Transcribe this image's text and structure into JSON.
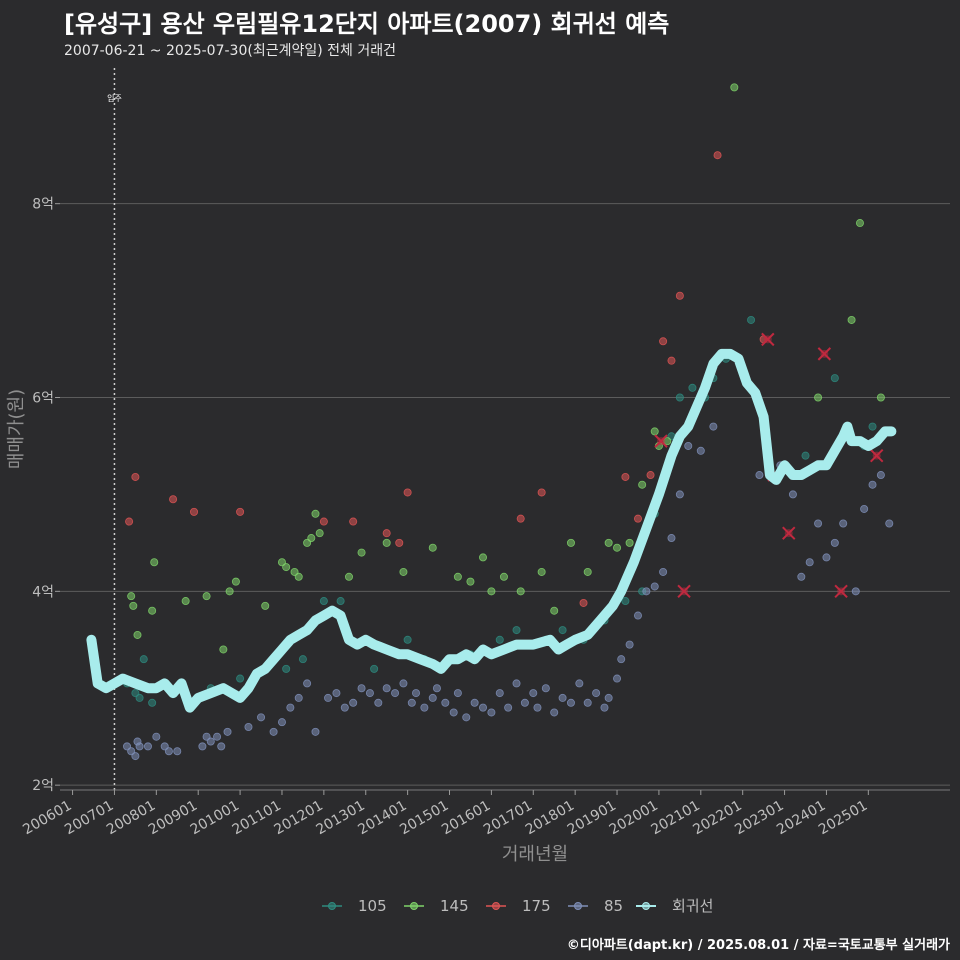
{
  "header": {
    "title": "[유성구] 용산 우림필유12단지 아파트(2007) 회귀선 예측",
    "subtitle": "2007-06-21 ~ 2025-07-30(최근계약일) 전체 거래건"
  },
  "footer": {
    "credit": "©디아파트(dapt.kr) / 2025.08.01 / 자료=국토교통부 실거래가"
  },
  "colors": {
    "background": "#2b2b2d",
    "grid": "#5c5c5c",
    "s105": "#2e8b7f",
    "s145": "#7fd46a",
    "s175": "#e05555",
    "s85": "#7f8fb8",
    "regression": "#a8ecec",
    "cancel_mark": "#c0293f"
  },
  "chart_data": {
    "type": "scatter",
    "title": "[유성구] 용산 우림필유12단지 아파트(2007) 회귀선 예측",
    "xlabel": "거래년월",
    "ylabel": "매매가(원)",
    "xlim": [
      2005.7,
      2026.95
    ],
    "ylim": [
      1.95,
      9.4
    ],
    "y_ticks": [
      {
        "value": 2,
        "label": "2억"
      },
      {
        "value": 4,
        "label": "4억"
      },
      {
        "value": 6,
        "label": "6억"
      },
      {
        "value": 8,
        "label": "8억"
      }
    ],
    "x_ticks": [
      {
        "value": 2006.0,
        "label": "200601"
      },
      {
        "value": 2007.0,
        "label": "200701"
      },
      {
        "value": 2008.0,
        "label": "200801"
      },
      {
        "value": 2009.0,
        "label": "200901"
      },
      {
        "value": 2010.0,
        "label": "201001"
      },
      {
        "value": 2011.0,
        "label": "201101"
      },
      {
        "value": 2012.0,
        "label": "201201"
      },
      {
        "value": 2013.0,
        "label": "201301"
      },
      {
        "value": 2014.0,
        "label": "201401"
      },
      {
        "value": 2015.0,
        "label": "201501"
      },
      {
        "value": 2016.0,
        "label": "201601"
      },
      {
        "value": 2017.0,
        "label": "201701"
      },
      {
        "value": 2018.0,
        "label": "201801"
      },
      {
        "value": 2019.0,
        "label": "201901"
      },
      {
        "value": 2020.0,
        "label": "202001"
      },
      {
        "value": 2021.0,
        "label": "202101"
      },
      {
        "value": 2022.0,
        "label": "202201"
      },
      {
        "value": 2023.0,
        "label": "202301"
      },
      {
        "value": 2024.0,
        "label": "202401"
      },
      {
        "value": 2025.0,
        "label": "202501"
      }
    ],
    "grid": true,
    "legend_position": "bottom",
    "annotation": {
      "x": 2007.0,
      "label": "입주"
    },
    "series": [
      {
        "name": "105",
        "points": [
          [
            2007.3,
            3.05
          ],
          [
            2007.5,
            2.95
          ],
          [
            2007.6,
            2.9
          ],
          [
            2007.7,
            3.3
          ],
          [
            2007.9,
            2.85
          ],
          [
            2008.6,
            3.05
          ],
          [
            2009.3,
            3.0
          ],
          [
            2010.0,
            3.1
          ],
          [
            2011.1,
            3.2
          ],
          [
            2011.5,
            3.3
          ],
          [
            2012.0,
            3.9
          ],
          [
            2012.4,
            3.9
          ],
          [
            2013.2,
            3.2
          ],
          [
            2014.0,
            3.5
          ],
          [
            2014.4,
            3.3
          ],
          [
            2015.0,
            3.3
          ],
          [
            2015.5,
            3.35
          ],
          [
            2016.2,
            3.5
          ],
          [
            2016.6,
            3.6
          ],
          [
            2017.3,
            3.5
          ],
          [
            2017.7,
            3.6
          ],
          [
            2018.2,
            3.5
          ],
          [
            2018.7,
            3.7
          ],
          [
            2019.2,
            3.9
          ],
          [
            2019.6,
            4.0
          ],
          [
            2019.9,
            4.8
          ],
          [
            2020.3,
            5.6
          ],
          [
            2020.5,
            6.0
          ],
          [
            2020.8,
            6.1
          ],
          [
            2021.1,
            6.0
          ],
          [
            2021.3,
            6.2
          ],
          [
            2021.6,
            6.4
          ],
          [
            2022.2,
            6.8
          ],
          [
            2023.5,
            5.4
          ],
          [
            2024.2,
            6.2
          ],
          [
            2024.9,
            5.5
          ],
          [
            2025.1,
            5.7
          ]
        ]
      },
      {
        "name": "145",
        "points": [
          [
            2007.4,
            3.95
          ],
          [
            2007.45,
            3.85
          ],
          [
            2007.55,
            3.55
          ],
          [
            2007.9,
            3.8
          ],
          [
            2007.95,
            4.3
          ],
          [
            2008.7,
            3.9
          ],
          [
            2009.2,
            3.95
          ],
          [
            2009.6,
            3.4
          ],
          [
            2009.75,
            4.0
          ],
          [
            2009.9,
            4.1
          ],
          [
            2010.6,
            3.85
          ],
          [
            2011.0,
            4.3
          ],
          [
            2011.1,
            4.25
          ],
          [
            2011.3,
            4.2
          ],
          [
            2011.4,
            4.15
          ],
          [
            2011.6,
            4.5
          ],
          [
            2011.7,
            4.55
          ],
          [
            2011.8,
            4.8
          ],
          [
            2011.9,
            4.6
          ],
          [
            2012.6,
            4.15
          ],
          [
            2012.9,
            4.4
          ],
          [
            2013.5,
            4.5
          ],
          [
            2013.9,
            4.2
          ],
          [
            2014.6,
            4.45
          ],
          [
            2015.2,
            4.15
          ],
          [
            2015.5,
            4.1
          ],
          [
            2015.8,
            4.35
          ],
          [
            2016.0,
            4.0
          ],
          [
            2016.3,
            4.15
          ],
          [
            2016.7,
            4.0
          ],
          [
            2017.2,
            4.2
          ],
          [
            2017.5,
            3.8
          ],
          [
            2017.9,
            4.5
          ],
          [
            2018.3,
            4.2
          ],
          [
            2018.8,
            4.5
          ],
          [
            2019.0,
            4.45
          ],
          [
            2019.3,
            4.5
          ],
          [
            2019.6,
            5.1
          ],
          [
            2019.9,
            5.65
          ],
          [
            2020.0,
            5.5
          ],
          [
            2020.2,
            5.55
          ],
          [
            2021.8,
            9.2
          ],
          [
            2023.8,
            6.0
          ],
          [
            2024.6,
            6.8
          ],
          [
            2024.8,
            7.8
          ],
          [
            2025.3,
            6.0
          ]
        ]
      },
      {
        "name": "175",
        "points": [
          [
            2007.35,
            4.72
          ],
          [
            2007.5,
            5.18
          ],
          [
            2008.4,
            4.95
          ],
          [
            2008.9,
            4.82
          ],
          [
            2010.0,
            4.82
          ],
          [
            2012.0,
            4.72
          ],
          [
            2012.7,
            4.72
          ],
          [
            2013.5,
            4.6
          ],
          [
            2013.8,
            4.5
          ],
          [
            2014.0,
            5.02
          ],
          [
            2016.7,
            4.75
          ],
          [
            2017.2,
            5.02
          ],
          [
            2018.2,
            3.88
          ],
          [
            2019.2,
            5.18
          ],
          [
            2019.5,
            4.75
          ],
          [
            2019.8,
            5.2
          ],
          [
            2020.1,
            6.58
          ],
          [
            2020.3,
            6.38
          ],
          [
            2020.5,
            7.05
          ],
          [
            2021.4,
            8.5
          ],
          [
            2022.5,
            6.6
          ],
          [
            2023.2,
            5.2
          ]
        ]
      },
      {
        "name": "85",
        "points": [
          [
            2007.3,
            2.4
          ],
          [
            2007.4,
            2.35
          ],
          [
            2007.5,
            2.3
          ],
          [
            2007.55,
            2.45
          ],
          [
            2007.6,
            2.4
          ],
          [
            2007.8,
            2.4
          ],
          [
            2008.0,
            2.5
          ],
          [
            2008.2,
            2.4
          ],
          [
            2008.3,
            2.35
          ],
          [
            2008.5,
            2.35
          ],
          [
            2009.1,
            2.4
          ],
          [
            2009.2,
            2.5
          ],
          [
            2009.3,
            2.45
          ],
          [
            2009.45,
            2.5
          ],
          [
            2009.55,
            2.4
          ],
          [
            2009.7,
            2.55
          ],
          [
            2010.2,
            2.6
          ],
          [
            2010.5,
            2.7
          ],
          [
            2010.8,
            2.55
          ],
          [
            2011.0,
            2.65
          ],
          [
            2011.2,
            2.8
          ],
          [
            2011.4,
            2.9
          ],
          [
            2011.6,
            3.05
          ],
          [
            2011.8,
            2.55
          ],
          [
            2012.1,
            2.9
          ],
          [
            2012.3,
            2.95
          ],
          [
            2012.5,
            2.8
          ],
          [
            2012.7,
            2.85
          ],
          [
            2012.9,
            3.0
          ],
          [
            2013.1,
            2.95
          ],
          [
            2013.3,
            2.85
          ],
          [
            2013.5,
            3.0
          ],
          [
            2013.7,
            2.95
          ],
          [
            2013.9,
            3.05
          ],
          [
            2014.1,
            2.85
          ],
          [
            2014.2,
            2.95
          ],
          [
            2014.4,
            2.8
          ],
          [
            2014.6,
            2.9
          ],
          [
            2014.7,
            3.0
          ],
          [
            2014.9,
            2.85
          ],
          [
            2015.1,
            2.75
          ],
          [
            2015.2,
            2.95
          ],
          [
            2015.4,
            2.7
          ],
          [
            2015.6,
            2.85
          ],
          [
            2015.8,
            2.8
          ],
          [
            2016.0,
            2.75
          ],
          [
            2016.2,
            2.95
          ],
          [
            2016.4,
            2.8
          ],
          [
            2016.6,
            3.05
          ],
          [
            2016.8,
            2.85
          ],
          [
            2017.0,
            2.95
          ],
          [
            2017.1,
            2.8
          ],
          [
            2017.3,
            3.0
          ],
          [
            2017.5,
            2.75
          ],
          [
            2017.7,
            2.9
          ],
          [
            2017.9,
            2.85
          ],
          [
            2018.1,
            3.05
          ],
          [
            2018.3,
            2.85
          ],
          [
            2018.5,
            2.95
          ],
          [
            2018.7,
            2.8
          ],
          [
            2018.8,
            2.9
          ],
          [
            2019.0,
            3.1
          ],
          [
            2019.1,
            3.3
          ],
          [
            2019.3,
            3.45
          ],
          [
            2019.5,
            3.75
          ],
          [
            2019.7,
            4.0
          ],
          [
            2019.9,
            4.05
          ],
          [
            2020.1,
            4.2
          ],
          [
            2020.3,
            4.55
          ],
          [
            2020.5,
            5.0
          ],
          [
            2020.7,
            5.5
          ],
          [
            2021.0,
            5.45
          ],
          [
            2021.3,
            5.7
          ],
          [
            2022.4,
            5.2
          ],
          [
            2022.9,
            5.3
          ],
          [
            2023.2,
            5.0
          ],
          [
            2023.4,
            4.15
          ],
          [
            2023.6,
            4.3
          ],
          [
            2023.8,
            4.7
          ],
          [
            2024.0,
            4.35
          ],
          [
            2024.2,
            4.5
          ],
          [
            2024.4,
            4.7
          ],
          [
            2024.7,
            4.0
          ],
          [
            2024.9,
            4.85
          ],
          [
            2025.1,
            5.1
          ],
          [
            2025.3,
            5.2
          ],
          [
            2025.5,
            4.7
          ]
        ]
      }
    ],
    "cancelled_marks": [
      [
        2020.05,
        5.55
      ],
      [
        2020.6,
        4.0
      ],
      [
        2022.6,
        6.6
      ],
      [
        2022.75,
        5.2
      ],
      [
        2023.1,
        4.6
      ],
      [
        2023.95,
        6.45
      ],
      [
        2024.35,
        4.0
      ],
      [
        2025.2,
        5.4
      ]
    ],
    "regression": {
      "name": "회귀선",
      "points": [
        [
          2006.45,
          3.5
        ],
        [
          2006.6,
          3.05
        ],
        [
          2006.8,
          3.0
        ],
        [
          2007.0,
          3.05
        ],
        [
          2007.2,
          3.1
        ],
        [
          2007.5,
          3.05
        ],
        [
          2007.8,
          3.0
        ],
        [
          2008.0,
          3.0
        ],
        [
          2008.2,
          3.05
        ],
        [
          2008.4,
          2.95
        ],
        [
          2008.6,
          3.05
        ],
        [
          2008.8,
          2.8
        ],
        [
          2009.0,
          2.9
        ],
        [
          2009.3,
          2.95
        ],
        [
          2009.6,
          3.0
        ],
        [
          2010.0,
          2.9
        ],
        [
          2010.2,
          3.0
        ],
        [
          2010.4,
          3.15
        ],
        [
          2010.6,
          3.2
        ],
        [
          2010.8,
          3.3
        ],
        [
          2011.0,
          3.4
        ],
        [
          2011.2,
          3.5
        ],
        [
          2011.4,
          3.55
        ],
        [
          2011.6,
          3.6
        ],
        [
          2011.8,
          3.7
        ],
        [
          2012.0,
          3.75
        ],
        [
          2012.2,
          3.8
        ],
        [
          2012.4,
          3.75
        ],
        [
          2012.6,
          3.5
        ],
        [
          2012.8,
          3.45
        ],
        [
          2013.0,
          3.5
        ],
        [
          2013.2,
          3.45
        ],
        [
          2013.5,
          3.4
        ],
        [
          2013.8,
          3.35
        ],
        [
          2014.0,
          3.35
        ],
        [
          2014.3,
          3.3
        ],
        [
          2014.6,
          3.25
        ],
        [
          2014.8,
          3.2
        ],
        [
          2015.0,
          3.3
        ],
        [
          2015.2,
          3.3
        ],
        [
          2015.4,
          3.35
        ],
        [
          2015.6,
          3.3
        ],
        [
          2015.8,
          3.4
        ],
        [
          2016.0,
          3.35
        ],
        [
          2016.3,
          3.4
        ],
        [
          2016.6,
          3.45
        ],
        [
          2017.0,
          3.45
        ],
        [
          2017.4,
          3.5
        ],
        [
          2017.6,
          3.4
        ],
        [
          2017.8,
          3.45
        ],
        [
          2018.0,
          3.5
        ],
        [
          2018.3,
          3.55
        ],
        [
          2018.6,
          3.7
        ],
        [
          2018.9,
          3.85
        ],
        [
          2019.1,
          4.0
        ],
        [
          2019.4,
          4.3
        ],
        [
          2019.7,
          4.65
        ],
        [
          2020.0,
          5.0
        ],
        [
          2020.3,
          5.4
        ],
        [
          2020.5,
          5.6
        ],
        [
          2020.7,
          5.7
        ],
        [
          2020.9,
          5.9
        ],
        [
          2021.1,
          6.1
        ],
        [
          2021.3,
          6.35
        ],
        [
          2021.5,
          6.45
        ],
        [
          2021.7,
          6.45
        ],
        [
          2021.9,
          6.4
        ],
        [
          2022.1,
          6.15
        ],
        [
          2022.3,
          6.05
        ],
        [
          2022.5,
          5.8
        ],
        [
          2022.65,
          5.2
        ],
        [
          2022.8,
          5.15
        ],
        [
          2023.0,
          5.3
        ],
        [
          2023.2,
          5.2
        ],
        [
          2023.4,
          5.2
        ],
        [
          2023.6,
          5.25
        ],
        [
          2023.8,
          5.3
        ],
        [
          2024.0,
          5.3
        ],
        [
          2024.2,
          5.45
        ],
        [
          2024.4,
          5.6
        ],
        [
          2024.5,
          5.7
        ],
        [
          2024.6,
          5.55
        ],
        [
          2024.8,
          5.55
        ],
        [
          2025.0,
          5.5
        ],
        [
          2025.2,
          5.55
        ],
        [
          2025.4,
          5.65
        ],
        [
          2025.55,
          5.65
        ]
      ]
    }
  }
}
